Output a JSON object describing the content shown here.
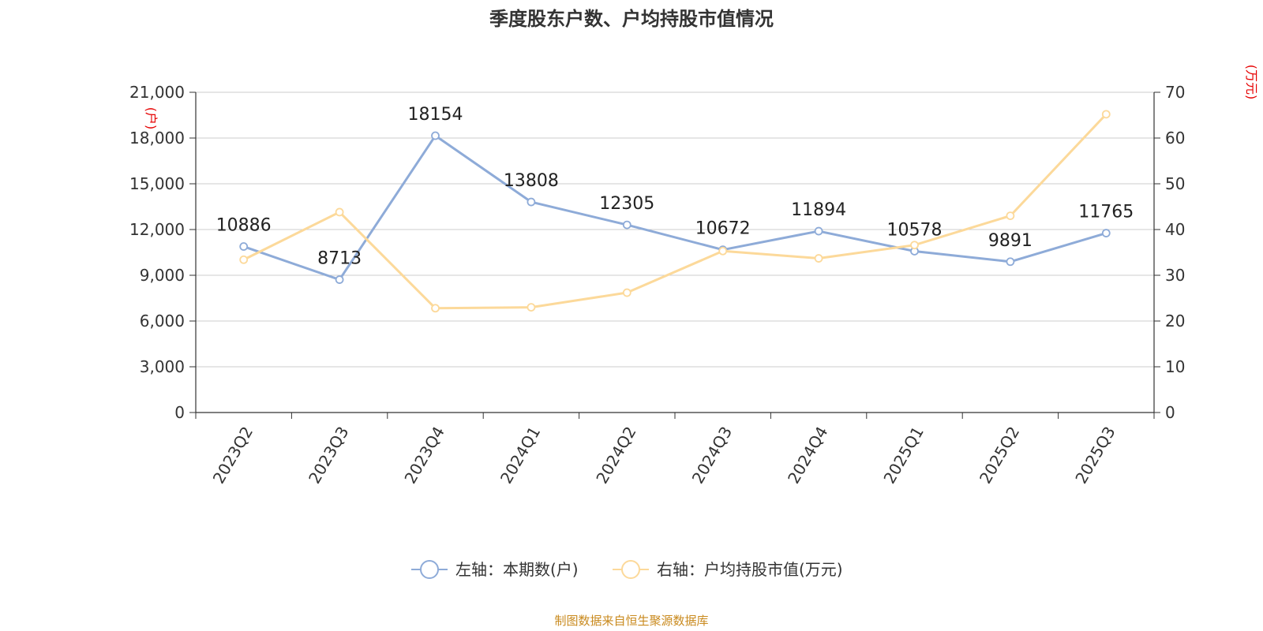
{
  "title": "季度股东户数、户均持股市值情况",
  "source": "制图数据来自恒生聚源数据库",
  "colors": {
    "left_series": "#8eabd8",
    "right_series": "#fcd99a",
    "grid": "#cccccc",
    "axis": "#333333",
    "unit": "#e60000",
    "source": "#c98a1e"
  },
  "chart_data": {
    "type": "line",
    "categories": [
      "2023Q2",
      "2023Q3",
      "2023Q4",
      "2024Q1",
      "2024Q2",
      "2024Q3",
      "2024Q4",
      "2025Q1",
      "2025Q2",
      "2025Q3"
    ],
    "left_axis": {
      "unit": "(户)",
      "ylim": [
        0,
        21000
      ],
      "ticks": [
        0,
        3000,
        6000,
        9000,
        12000,
        15000,
        18000,
        21000
      ],
      "tick_labels": [
        "0",
        "3,000",
        "6,000",
        "9,000",
        "12,000",
        "15,000",
        "18,000",
        "21,000"
      ]
    },
    "right_axis": {
      "unit": "(万元)",
      "ylim": [
        0,
        70
      ],
      "ticks": [
        0,
        10,
        20,
        30,
        40,
        50,
        60,
        70
      ],
      "tick_labels": [
        "0",
        "10",
        "20",
        "30",
        "40",
        "50",
        "60",
        "70"
      ]
    },
    "grid": true,
    "legend_position": "bottom-center",
    "series": [
      {
        "name": "左轴：本期数(户)",
        "axis": "left",
        "values": [
          10886,
          8713,
          18154,
          13808,
          12305,
          10672,
          11894,
          10578,
          9891,
          11765
        ],
        "data_labels": [
          "10886",
          "8713",
          "18154",
          "13808",
          "12305",
          "10672",
          "11894",
          "10578",
          "9891",
          "11765"
        ]
      },
      {
        "name": "右轴：户均持股市值(万元)",
        "axis": "right",
        "values": [
          33.4,
          43.8,
          22.8,
          23.0,
          26.2,
          35.3,
          33.7,
          36.6,
          43.0,
          65.2
        ]
      }
    ]
  }
}
